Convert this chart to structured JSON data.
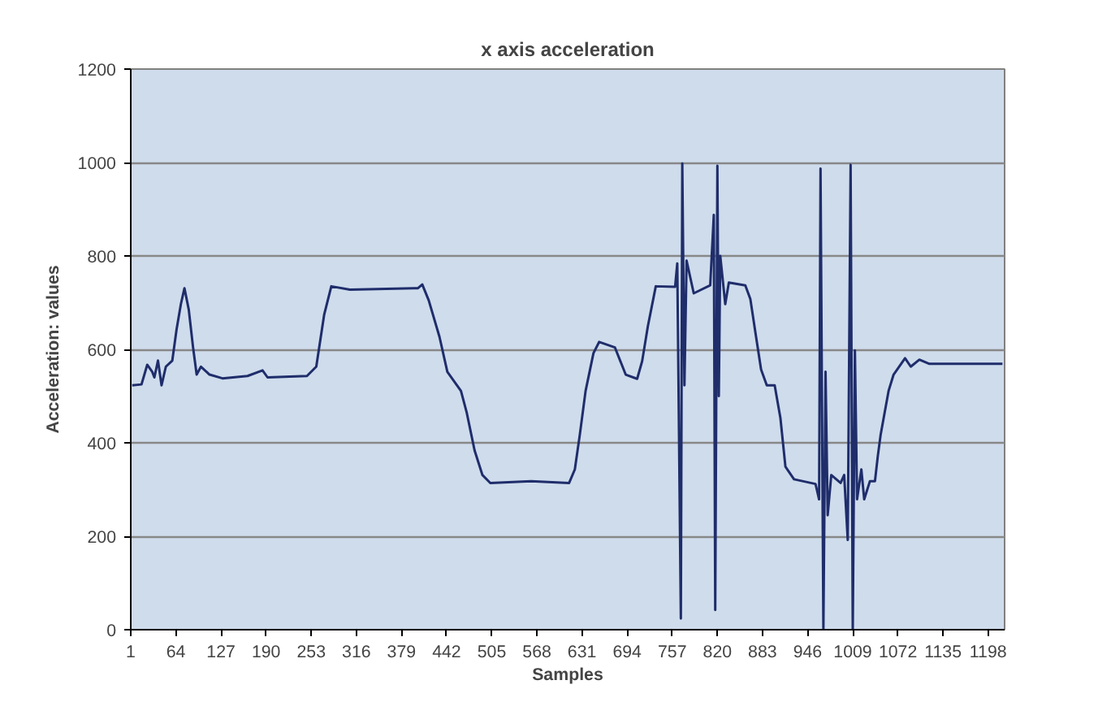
{
  "chart_data": {
    "type": "line",
    "title": "x axis acceleration",
    "xlabel": "Samples",
    "ylabel": "Acceleration: values",
    "xlim": [
      1,
      1221
    ],
    "ylim": [
      0,
      1200
    ],
    "xticks": [
      1,
      64,
      127,
      190,
      253,
      316,
      379,
      442,
      505,
      568,
      631,
      694,
      757,
      820,
      883,
      946,
      1009,
      1072,
      1135,
      1198
    ],
    "yticks": [
      0,
      200,
      400,
      600,
      800,
      1000,
      1200
    ],
    "grid": "y",
    "series": [
      {
        "color": "#1f2d6b",
        "x": [
          3,
          16,
          24,
          31,
          34,
          39,
          44,
          50,
          59,
          65,
          71,
          76,
          82,
          88,
          93,
          99,
          111,
          129,
          164,
          185,
          192,
          247,
          260,
          271,
          281,
          307,
          402,
          408,
          417,
          432,
          443,
          462,
          470,
          481,
          492,
          503,
          560,
          613,
          621,
          628,
          636,
          647,
          655,
          677,
          692,
          708,
          715,
          723,
          734,
          761,
          764,
          769,
          771,
          774,
          777,
          787,
          810,
          815,
          817,
          820,
          822,
          824,
          831,
          836,
          859,
          866,
          874,
          881,
          889,
          900,
          908,
          915,
          927,
          957,
          962,
          964,
          968,
          971,
          974,
          979,
          992,
          997,
          1002,
          1006,
          1009,
          1012,
          1015,
          1021,
          1025,
          1033,
          1040,
          1044,
          1048,
          1059,
          1066,
          1082,
          1090,
          1102,
          1116,
          1218
        ],
        "values": [
          523,
          525,
          567,
          552,
          540,
          576,
          523,
          563,
          576,
          643,
          697,
          731,
          685,
          604,
          546,
          563,
          546,
          538,
          543,
          555,
          540,
          543,
          563,
          674,
          735,
          728,
          731,
          739,
          705,
          627,
          552,
          511,
          465,
          384,
          331,
          314,
          318,
          314,
          343,
          418,
          511,
          592,
          616,
          604,
          546,
          537,
          575,
          650,
          735,
          734,
          784,
          24,
          998,
          523,
          790,
          720,
          737,
          888,
          42,
          993,
          500,
          800,
          697,
          743,
          737,
          708,
          627,
          557,
          523,
          523,
          453,
          349,
          322,
          312,
          279,
          987,
          0,
          552,
          245,
          331,
          314,
          331,
          192,
          995,
          0,
          598,
          279,
          343,
          279,
          318,
          318,
          372,
          418,
          511,
          546,
          581,
          563,
          578,
          569,
          569
        ]
      }
    ]
  }
}
